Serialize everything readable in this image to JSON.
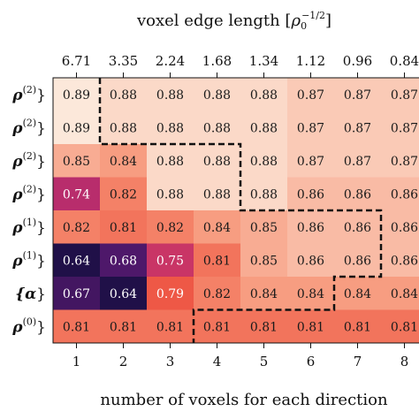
{
  "chart_data": {
    "type": "heatmap",
    "top_axis_title": "voxel edge length [",
    "top_axis_rho": "ρ",
    "top_axis_sub": "0",
    "top_axis_sup": "−1/2",
    "top_axis_close": "]",
    "top_ticks": [
      "6.71",
      "3.35",
      "2.24",
      "1.68",
      "1.34",
      "1.12",
      "0.96",
      "0.84"
    ],
    "x_label": "number of voxels for each direction",
    "x_ticks": [
      "1",
      "2",
      "3",
      "4",
      "5",
      "6",
      "7",
      "8"
    ],
    "row_labels": [
      {
        "text": "ρ",
        "sup": "(2)",
        "tail": "}"
      },
      {
        "text": "ρ",
        "sup": "(2)",
        "tail": "}"
      },
      {
        "text": "ρ",
        "sup": "(2)",
        "tail": "}"
      },
      {
        "text": "ρ",
        "sup": "(2)",
        "tail": "}"
      },
      {
        "text": "ρ",
        "sup": "(1)",
        "tail": "}"
      },
      {
        "text": "ρ",
        "sup": "(1)",
        "tail": "}"
      },
      {
        "text": "{α",
        "sup": "",
        "tail": "}"
      },
      {
        "text": "ρ",
        "sup": "(0)",
        "tail": "}"
      }
    ],
    "values": [
      [
        0.89,
        0.88,
        0.88,
        0.88,
        0.88,
        0.87,
        0.87,
        0.87
      ],
      [
        0.89,
        0.88,
        0.88,
        0.88,
        0.88,
        0.87,
        0.87,
        0.87
      ],
      [
        0.85,
        0.84,
        0.88,
        0.88,
        0.88,
        0.87,
        0.87,
        0.87
      ],
      [
        0.74,
        0.82,
        0.88,
        0.88,
        0.88,
        0.86,
        0.86,
        0.86
      ],
      [
        0.82,
        0.81,
        0.82,
        0.84,
        0.85,
        0.86,
        0.86,
        0.86
      ],
      [
        0.64,
        0.68,
        0.75,
        0.81,
        0.85,
        0.86,
        0.86,
        0.86
      ],
      [
        0.67,
        0.64,
        0.79,
        0.82,
        0.84,
        0.84,
        0.84,
        0.84
      ],
      [
        0.81,
        0.81,
        0.81,
        0.81,
        0.81,
        0.81,
        0.81,
        0.81
      ]
    ],
    "value_range": [
      0.64,
      0.89
    ],
    "best_region_boundary": [
      [
        1,
        0
      ],
      [
        1,
        2
      ],
      [
        4,
        2
      ],
      [
        4,
        4
      ],
      [
        7,
        4
      ],
      [
        7,
        6
      ],
      [
        6,
        6
      ],
      [
        6,
        7
      ],
      [
        3,
        7
      ],
      [
        3,
        8
      ]
    ]
  }
}
